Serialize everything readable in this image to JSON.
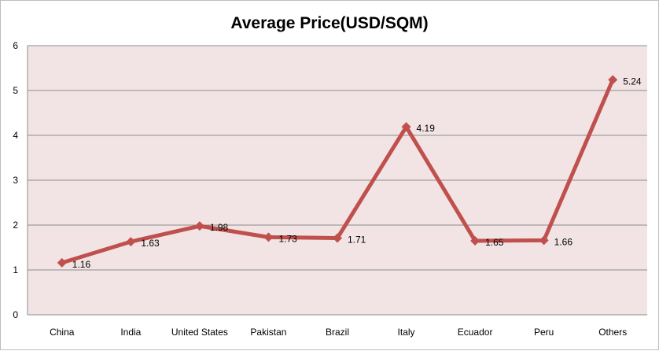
{
  "chart_data": {
    "type": "line",
    "title": "Average Price(USD/SQM)",
    "xlabel": "",
    "ylabel": "",
    "categories": [
      "China",
      "India",
      "United States",
      "Pakistan",
      "Brazil",
      "Italy",
      "Ecuador",
      "Peru",
      "Others"
    ],
    "series": [
      {
        "values": [
          1.16,
          1.63,
          1.98,
          1.73,
          1.71,
          4.19,
          1.65,
          1.66,
          5.24
        ],
        "color": "#c0504d",
        "marker": "diamond"
      }
    ],
    "data_labels": [
      "1.16",
      "1.63",
      "1.98",
      "1.73",
      "1.71",
      "4.19",
      "1.65",
      "1.66",
      "5.24"
    ],
    "ylim": [
      0,
      6
    ],
    "yticks": [
      "0",
      "1",
      "2",
      "3",
      "4",
      "5",
      "6"
    ],
    "grid": true,
    "legend": "none",
    "plot_background": "#f2e4e4",
    "grid_color": "#8c8c8c"
  }
}
